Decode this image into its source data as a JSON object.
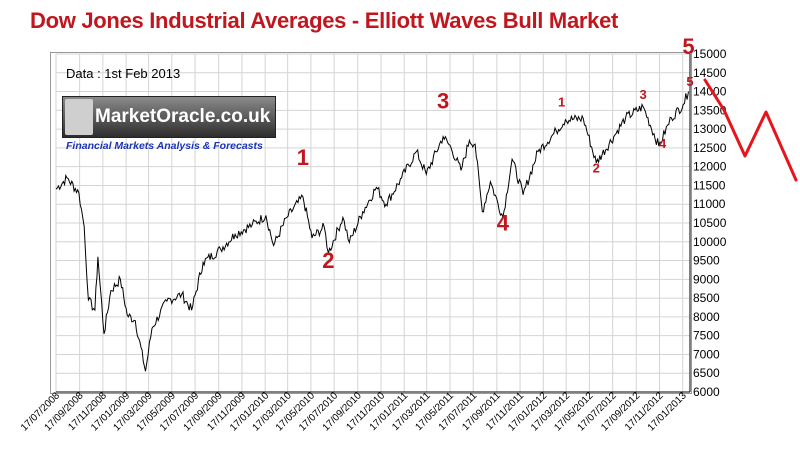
{
  "chart_data": {
    "type": "line",
    "title": "Dow Jones Industrial Averages  - Elliott Waves Bull Market",
    "note": "Data : 1st Feb 2013",
    "logo": {
      "name": "MarketOracle.co.uk",
      "tagline": "Financial Markets Analysis & Forecasts"
    },
    "ylim": [
      6000,
      15000
    ],
    "y_ticks": [
      6000,
      6500,
      7000,
      7500,
      8000,
      8500,
      9000,
      9500,
      10000,
      10500,
      11000,
      11500,
      12000,
      12500,
      13000,
      13500,
      14000,
      14500,
      15000
    ],
    "x_tick_labels": [
      "17/07/2008",
      "17/09/2008",
      "17/11/2008",
      "17/01/2009",
      "17/03/2009",
      "17/05/2009",
      "17/07/2009",
      "17/09/2009",
      "17/11/2009",
      "17/01/2010",
      "17/03/2010",
      "17/05/2010",
      "17/07/2010",
      "17/09/2010",
      "17/11/2010",
      "17/01/2011",
      "17/03/2011",
      "17/05/2011",
      "17/07/2011",
      "17/09/2011",
      "17/11/2011",
      "17/01/2012",
      "17/03/2012",
      "17/05/2012",
      "17/07/2012",
      "17/09/2012",
      "17/11/2012",
      "17/01/2013"
    ],
    "grid": true,
    "series": [
      {
        "x": [
          "2008-07-17",
          "2008-08-15",
          "2008-09-15",
          "2008-09-29",
          "2008-10-10",
          "2008-10-27",
          "2008-11-04",
          "2008-11-20",
          "2008-12-08",
          "2009-01-02",
          "2009-01-20",
          "2009-02-10",
          "2009-03-09",
          "2009-03-26",
          "2009-05-04",
          "2009-06-12",
          "2009-07-08",
          "2009-08-07",
          "2009-09-22",
          "2009-10-30",
          "2009-12-14",
          "2010-01-19",
          "2010-02-08",
          "2010-03-15",
          "2010-04-26",
          "2010-05-20",
          "2010-06-21",
          "2010-07-02",
          "2010-08-09",
          "2010-08-26",
          "2010-09-30",
          "2010-11-05",
          "2010-11-30",
          "2011-01-10",
          "2011-02-18",
          "2011-03-16",
          "2011-04-29",
          "2011-05-20",
          "2011-06-15",
          "2011-07-07",
          "2011-07-22",
          "2011-08-10",
          "2011-08-31",
          "2011-10-03",
          "2011-10-27",
          "2011-11-25",
          "2012-01-03",
          "2012-02-20",
          "2012-03-15",
          "2012-05-01",
          "2012-06-04",
          "2012-07-20",
          "2012-08-20",
          "2012-10-05",
          "2012-11-15",
          "2012-12-18",
          "2013-01-18",
          "2013-02-01"
        ],
        "y": [
          11400,
          11700,
          11300,
          10400,
          8450,
          8180,
          9600,
          7550,
          8700,
          9000,
          8050,
          7900,
          6550,
          7700,
          8420,
          8600,
          8180,
          9450,
          9800,
          10200,
          10450,
          10700,
          9900,
          10650,
          11200,
          10100,
          10400,
          9700,
          10650,
          9980,
          10800,
          11450,
          11000,
          11700,
          12400,
          11800,
          12800,
          12500,
          11900,
          12700,
          12600,
          10800,
          11600,
          10650,
          12200,
          11250,
          12400,
          12950,
          13250,
          13280,
          12100,
          12800,
          13300,
          13600,
          12550,
          13300,
          13650,
          14000
        ]
      }
    ],
    "wave_labels": [
      {
        "text": "1",
        "x": "2010-04-26",
        "y": 12050,
        "size": "large"
      },
      {
        "text": "2",
        "x": "2010-07-02",
        "y": 9300,
        "size": "large"
      },
      {
        "text": "3",
        "x": "2011-04-29",
        "y": 13550,
        "size": "large"
      },
      {
        "text": "4",
        "x": "2011-10-03",
        "y": 10300,
        "size": "large"
      },
      {
        "text": "5",
        "x": "2013-02-01",
        "y": 15000,
        "size": "large"
      },
      {
        "text": "1",
        "x": "2012-03-05",
        "y": 13600,
        "size": "small"
      },
      {
        "text": "2",
        "x": "2012-06-04",
        "y": 11850,
        "size": "small"
      },
      {
        "text": "3",
        "x": "2012-10-05",
        "y": 13800,
        "size": "small"
      },
      {
        "text": "4",
        "x": "2012-11-25",
        "y": 12500,
        "size": "small"
      },
      {
        "text": "5",
        "x": "2013-02-05",
        "y": 14150,
        "size": "small"
      }
    ],
    "colors": {
      "line": "#000000",
      "labels": "#c0171f",
      "title": "#c0171f",
      "grid": "#d4d4d4"
    }
  }
}
